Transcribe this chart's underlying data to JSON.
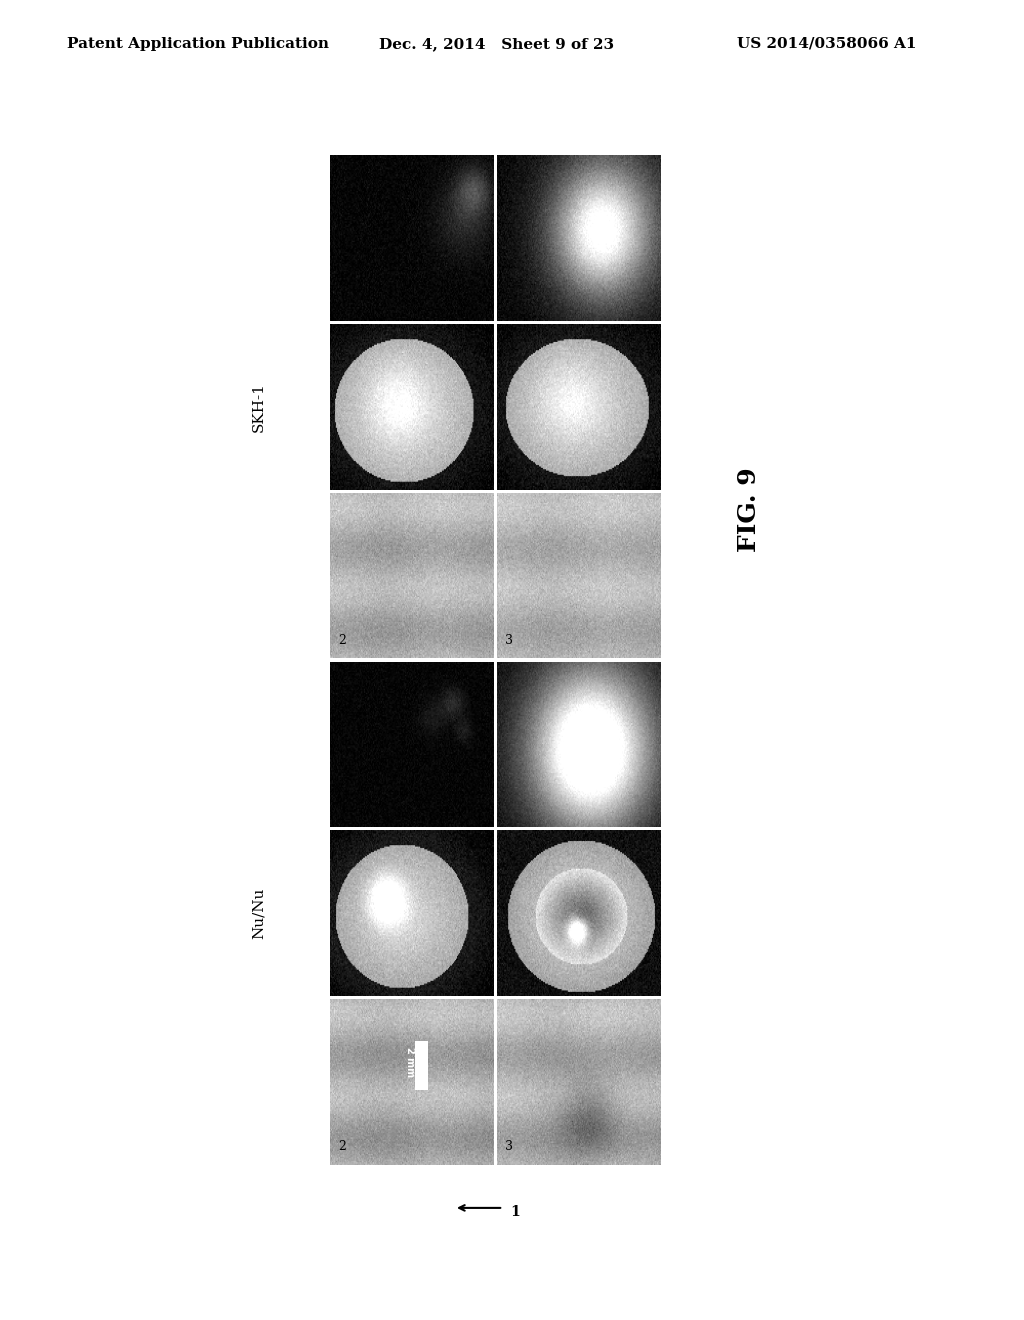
{
  "title_left": "Patent Application Publication",
  "title_center": "Dec. 4, 2014   Sheet 9 of 23",
  "title_right": "US 2014/0358066 A1",
  "fig_label": "FIG. 9",
  "label_skh1": "SKH-1",
  "label_nunu": "Nu/Nu",
  "bottom_arrow_label": "1",
  "scale_bar_text": "2 mm",
  "background_color": "#ffffff",
  "header_fontsize": 11,
  "fig_label_fontsize": 18,
  "label_fontsize": 11,
  "panel_label_2": "2",
  "panel_label_3": "3"
}
